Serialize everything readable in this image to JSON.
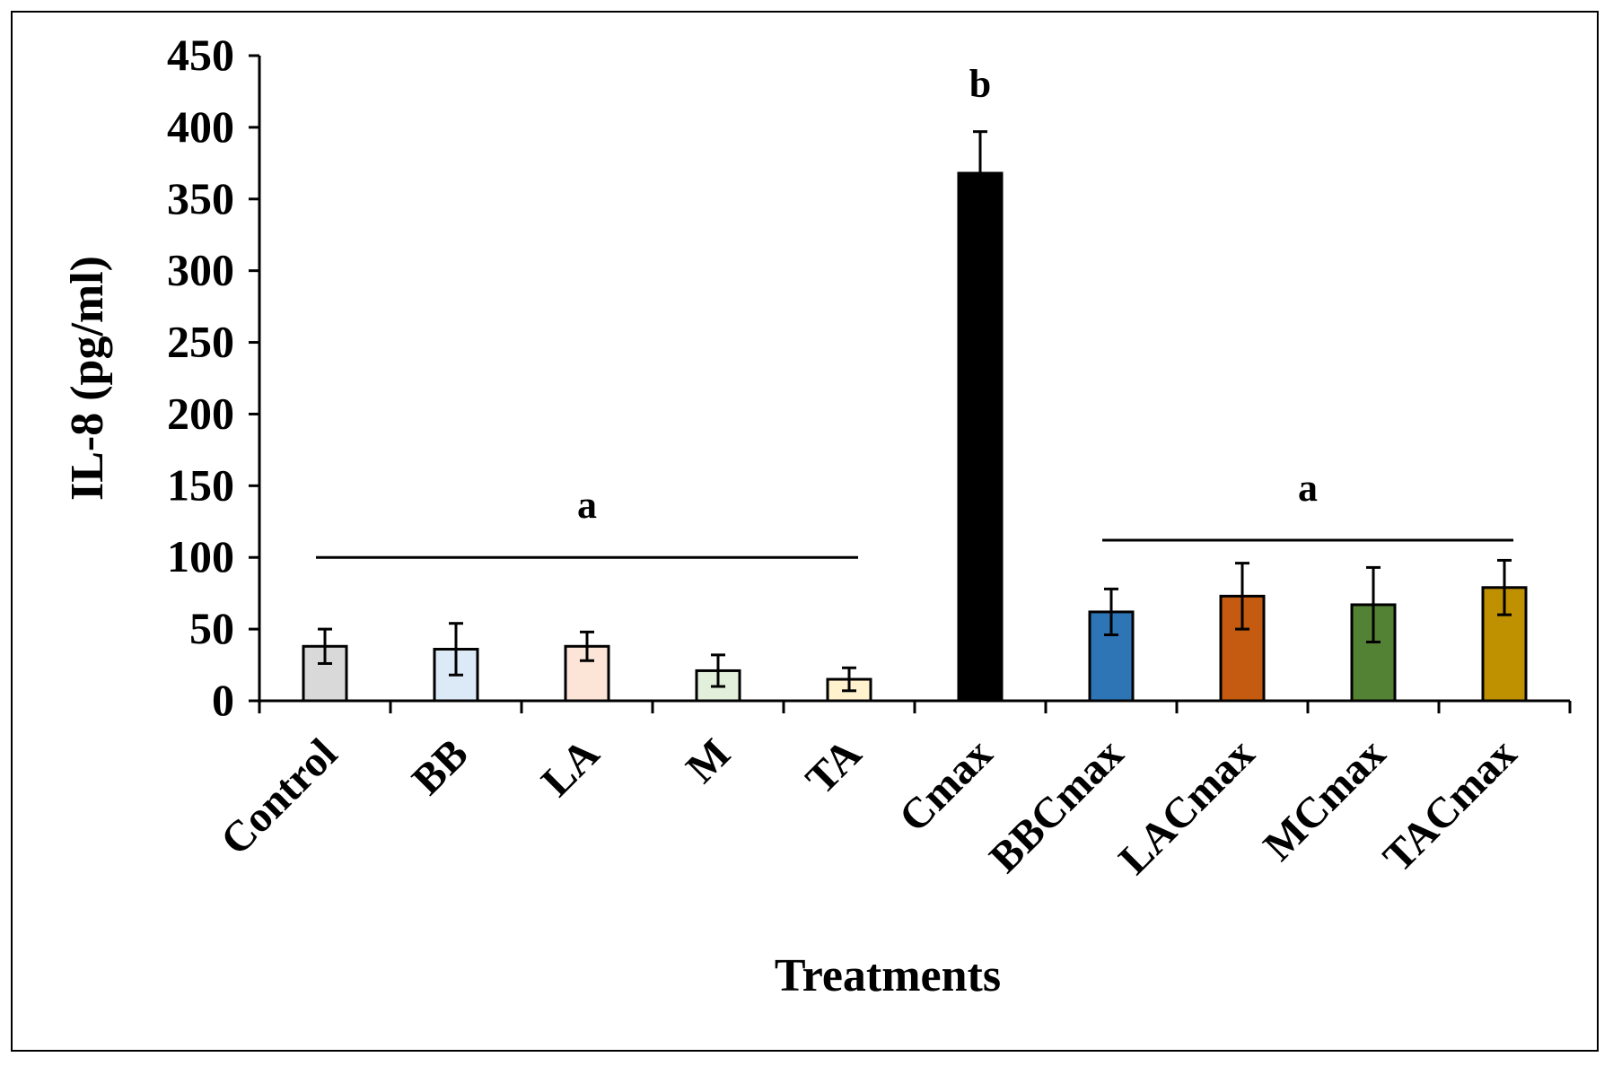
{
  "chart_data": {
    "type": "bar",
    "title": "",
    "xlabel": "Treatments",
    "ylabel": "IL-8 (pg/ml)",
    "ylim": [
      0,
      450
    ],
    "yticks": [
      0,
      50,
      100,
      150,
      200,
      250,
      300,
      350,
      400,
      450
    ],
    "categories": [
      "Control",
      "BB",
      "LA",
      "M",
      "TA",
      "Cmax",
      "BBCmax",
      "LACmax",
      "MCmax",
      "TACmax"
    ],
    "values": [
      38,
      36,
      38,
      21,
      15,
      368,
      62,
      73,
      67,
      79
    ],
    "errors": [
      12,
      18,
      10,
      11,
      8,
      29,
      16,
      23,
      26,
      19
    ],
    "colors": [
      "#d9d9d9",
      "#dce9f7",
      "#fce4d6",
      "#e2efda",
      "#fff2cc",
      "#000000",
      "#2e75b6",
      "#c55a11",
      "#548235",
      "#bf9000"
    ],
    "grid": false,
    "annotations": [
      {
        "text": "a",
        "line_from": "Control",
        "line_to": "TA",
        "line_y": 100
      },
      {
        "text": "b",
        "over": "Cmax",
        "y": 430
      },
      {
        "text": "a",
        "line_from": "BBCmax",
        "line_to": "TACmax",
        "line_y": 112
      }
    ]
  }
}
